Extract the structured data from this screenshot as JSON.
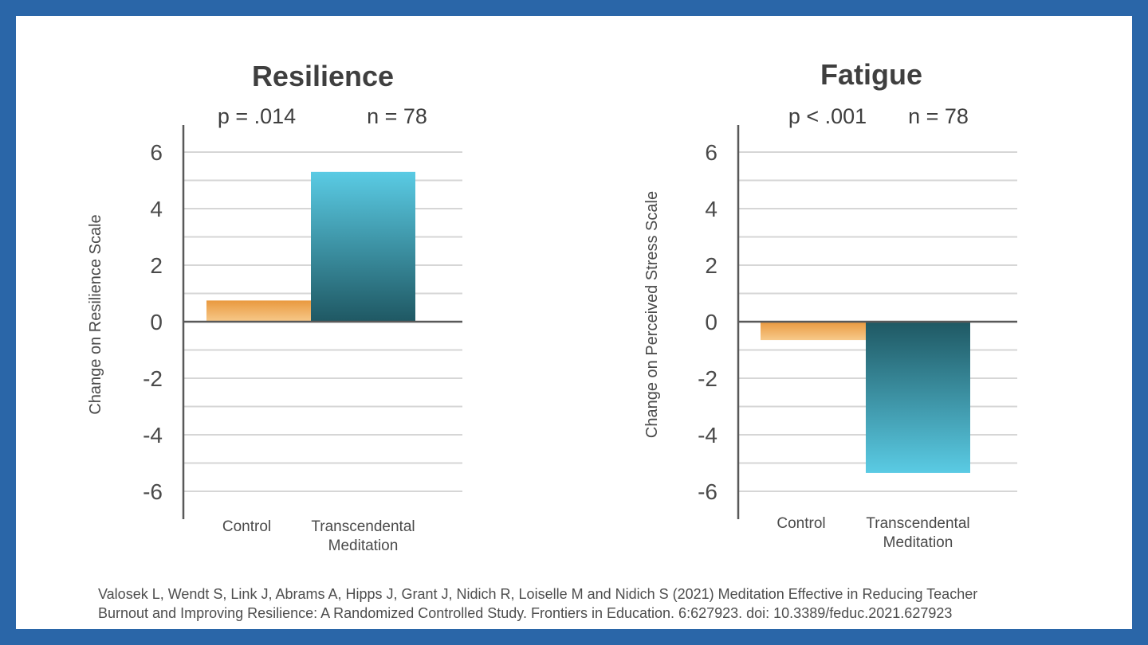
{
  "colors": {
    "background_border": "#2a66a8",
    "control_top": "#e9993f",
    "control_bottom": "#f7c98a",
    "tm_light": "#5acbe4",
    "tm_dark": "#1f5863",
    "grid": "#d6d6d6",
    "axis": "#595959"
  },
  "chart_data": [
    {
      "type": "bar",
      "title": "Resilience",
      "p_value": "p = .014",
      "n": "n = 78",
      "ylabel": "Change on Resilience Scale",
      "categories": [
        "Control",
        "Transcendental Meditation"
      ],
      "category_lines": [
        [
          "Control"
        ],
        [
          "Transcendental",
          "Meditation"
        ]
      ],
      "values": [
        0.75,
        5.3
      ],
      "ylim": [
        -7,
        7
      ],
      "yticks": [
        6,
        4,
        2,
        0,
        -2,
        -4,
        -6
      ],
      "ytick_labels": [
        "6",
        "4",
        "2",
        "0",
        "-2",
        "-4",
        "-6"
      ],
      "grid": true
    },
    {
      "type": "bar",
      "title": "Fatigue",
      "p_value": "p < .001",
      "n": "n = 78",
      "ylabel": "Change on Perceived Stress Scale",
      "categories": [
        "Control",
        "Transcendental Meditation"
      ],
      "category_lines": [
        [
          "Control"
        ],
        [
          "Transcendental",
          "Meditation"
        ]
      ],
      "values": [
        -0.65,
        -5.35
      ],
      "ylim": [
        -7,
        7
      ],
      "yticks": [
        6,
        4,
        2,
        0,
        -2,
        -4,
        -6
      ],
      "ytick_labels": [
        "6",
        "4",
        "2",
        "0",
        "-2",
        "-4",
        "-6"
      ],
      "grid": true
    }
  ],
  "citation": {
    "line1": "Valosek L, Wendt S, Link J, Abrams A, Hipps J, Grant J, Nidich R, Loiselle M and Nidich S (2021) Meditation Effective in Reducing Teacher",
    "line2": "Burnout and Improving Resilience: A Randomized Controlled Study. Frontiers in Education. 6:627923. doi: 10.3389/feduc.2021.627923"
  }
}
